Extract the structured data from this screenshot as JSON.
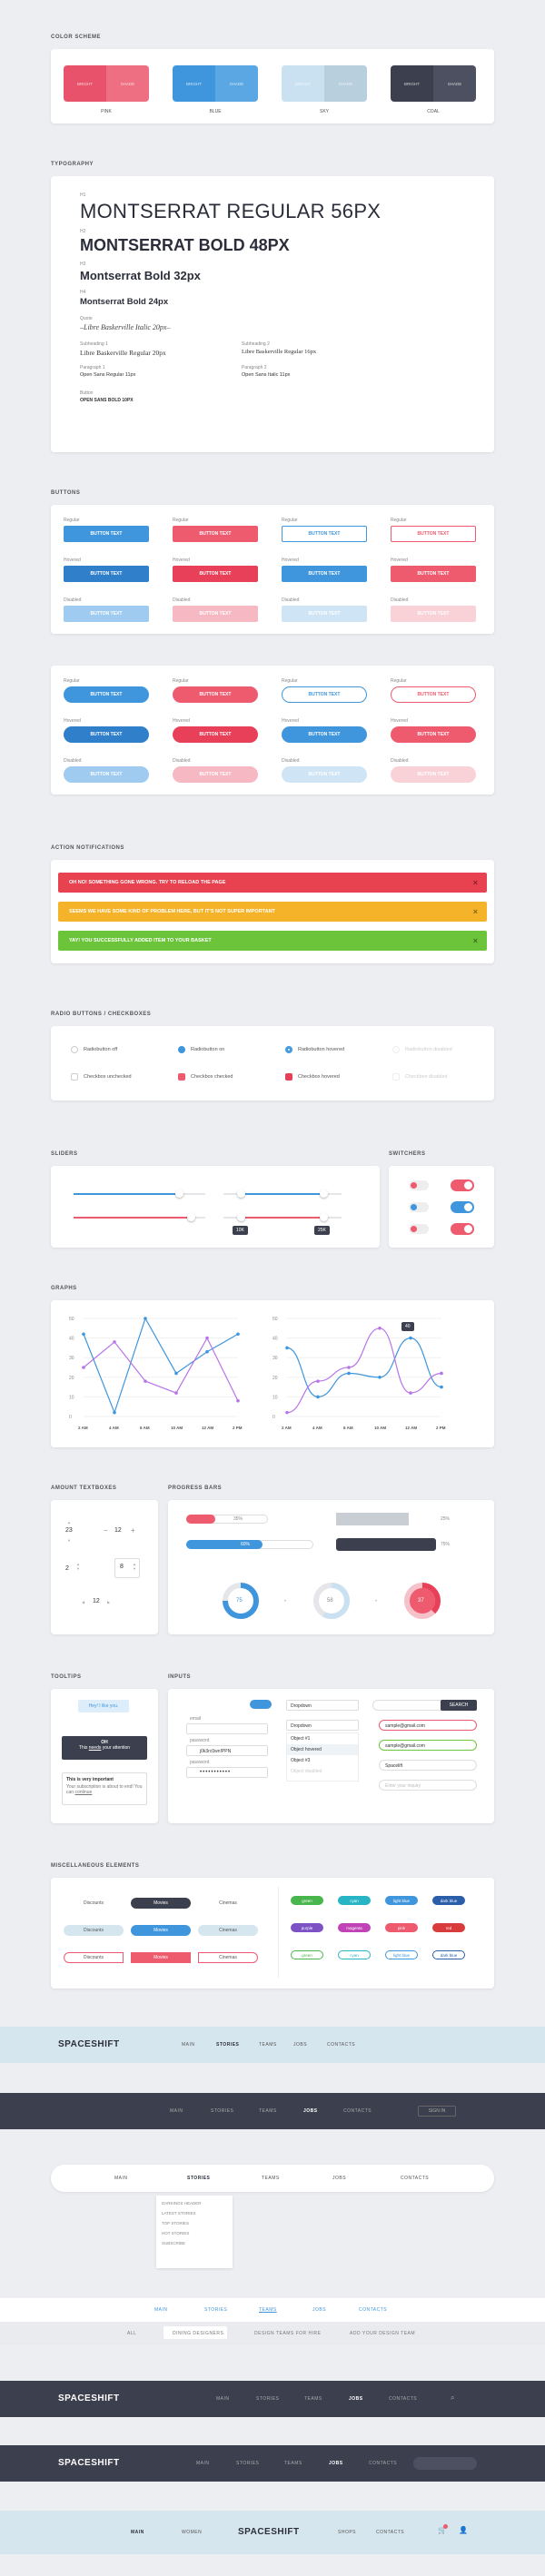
{
  "sections": {
    "color": "COLOR SCHEME",
    "typo": "TYPOGRAPHY",
    "buttons": "BUTTONS",
    "notif": "ACTION NOTIFICATIONS",
    "radio": "RADIO BUTTONS / CHECKBOXES",
    "sliders": "SLIDERS",
    "switchers": "SWITCHERS",
    "graphs": "GRAPHS",
    "amount": "AMOUNT TEXTBOXES",
    "progress": "PROGRESS BARS",
    "tooltips": "TOOLTIPS",
    "inputs": "INPUTS",
    "misc": "MISCELLANEOUS ELEMENTS"
  },
  "colors": [
    {
      "name": "PINK",
      "l": "#e8526a",
      "r": "#ee6f82",
      "a": "BRIGHT",
      "b": "SHADE"
    },
    {
      "name": "BLUE",
      "l": "#3f96dc",
      "r": "#5aa7e3",
      "a": "BRIGHT",
      "b": "SHADE"
    },
    {
      "name": "SKY",
      "l": "#c9e1f1",
      "r": "#b8cfdd",
      "a": "BRIGHT",
      "b": "SHADE"
    },
    {
      "name": "COAL",
      "l": "#3c3f4d",
      "r": "#4d5060",
      "a": "BRIGHT",
      "b": "SHADE"
    }
  ],
  "typo": {
    "h1l": "H1",
    "h1": "MONTSERRAT REGULAR 56PX",
    "h2l": "H2",
    "h2": "MONTSERRAT BOLD 48PX",
    "h3l": "H3",
    "h3": "Montserrat Bold 32px",
    "h4l": "H4",
    "h4": "Montserrat Bold 24px",
    "ql": "Quote",
    "q": "–Libre Baskerville Italic 20px–",
    "s1l": "Subheading 1",
    "s1": "Libre Baskerville Regular 20px",
    "s2l": "Subheading 2",
    "s2": "Libre Baskerville Regular 16px",
    "p1l": "Paragraph 1",
    "p1": "Open Sans Regular 11px",
    "p2l": "Paragraph 2",
    "p2": "Open Sans Italic 11px",
    "bl": "Button",
    "b": "OPEN SANS BOLD 10PX"
  },
  "btn": {
    "regular": "Regular",
    "hovered": "Hovered",
    "disabled": "Disabled",
    "text": "BUTTON TEXT"
  },
  "notifs": [
    {
      "text": "OH NO! SOMETHING GONE WRONG. TRY TO RELOAD THE PAGE",
      "color": "#e8414f"
    },
    {
      "text": "SEEMS WE HAVE SOME KIND OF PROBLEM HERE, BUT IT'S NOT SUPER IMPORTANT",
      "color": "#f5b32a"
    },
    {
      "text": "YAY! YOU SUCCESSFULLY ADDED ITEM TO YOUR BASKET",
      "color": "#6cc43a"
    }
  ],
  "close": "×",
  "radios": [
    "Radiobutton off",
    "Radiobutton on",
    "Radiobutton hovered",
    "Radiobutton disabled"
  ],
  "checks": [
    "Checkbox unchecked",
    "Checkbox checked",
    "Checkbox hovered",
    "Checkbox disabled"
  ],
  "slider": {
    "v1": "10K",
    "v2": "25K"
  },
  "graph_y": [
    "50",
    "40",
    "30",
    "20",
    "10",
    "0"
  ],
  "graph_x": [
    "2 AM",
    "4 AM",
    "6 AM",
    "10 AM",
    "12 AM",
    "2 PM"
  ],
  "graph_tip": "40",
  "chart_data": [
    {
      "type": "line",
      "x": [
        "2 AM",
        "4 AM",
        "6 AM",
        "10 AM",
        "12 AM",
        "2 PM"
      ],
      "series": [
        {
          "values": [
            42,
            2,
            50,
            22,
            33,
            42
          ]
        },
        {
          "values": [
            25,
            38,
            18,
            12,
            40,
            8
          ]
        }
      ],
      "ylim": [
        0,
        50
      ]
    },
    {
      "type": "line",
      "x": [
        "2 AM",
        "4 AM",
        "6 AM",
        "10 AM",
        "12 AM",
        "2 PM"
      ],
      "series": [
        {
          "values": [
            35,
            10,
            22,
            20,
            40,
            15
          ]
        },
        {
          "values": [
            2,
            18,
            25,
            45,
            12,
            22
          ]
        }
      ],
      "ylim": [
        0,
        50
      ]
    }
  ],
  "amount": {
    "a": "23",
    "b": "12",
    "c": "2",
    "d": "8",
    "e": "12"
  },
  "progress": {
    "p1": "35%",
    "p2": "60%",
    "p3": "25%",
    "p4": "75%",
    "r1": "75",
    "r2": "58",
    "r3": "37"
  },
  "tooltips": {
    "t1": "Hey! I like you.",
    "t2": "OH",
    "t2b": "This",
    "t2l": "needs",
    "t2c": "your attention",
    "t3": "This is very important",
    "t3b": "Your subscription is about to end! You can",
    "t3l": "continue"
  },
  "inputs": {
    "email": "email",
    "password": "password",
    "pwval": "j0k3rc0wn!PPN",
    "dd": "Dropdown",
    "opt1": "Object #1",
    "opt2": "Object hovered",
    "opt3": "Object #3",
    "opt4": "Object disabled",
    "search": "SEARCH",
    "e1": "sample@gmail.com",
    "e2": "sample@gmail.com",
    "e3": "Spacelift",
    "e4": "Enter your inquiry"
  },
  "misc": {
    "d": "Discounts",
    "m": "Movies",
    "c": "Cinemas"
  },
  "tags": [
    {
      "t": "green",
      "c": "#49b54d"
    },
    {
      "t": "cyan",
      "c": "#27b4c4"
    },
    {
      "t": "light blue",
      "c": "#3f96dc"
    },
    {
      "t": "dark blue",
      "c": "#2a5ea8"
    },
    {
      "t": "purple",
      "c": "#7c52c5"
    },
    {
      "t": "magenta",
      "c": "#c044b6"
    },
    {
      "t": "pink",
      "c": "#ee5a6e"
    },
    {
      "t": "red",
      "c": "#d83c3c"
    },
    {
      "t": "green",
      "c": "#49b54d"
    },
    {
      "t": "cyan",
      "c": "#27b4c4"
    },
    {
      "t": "light blue",
      "c": "#3f96dc"
    },
    {
      "t": "dark blue",
      "c": "#2a5ea8"
    }
  ],
  "nav": {
    "logo": "SPACESHIFT",
    "main": "MAIN",
    "stories": "STORIES",
    "teams": "TEAMS",
    "jobs": "JOBS",
    "contacts": "CONTACTS",
    "signin": "SIGN IN",
    "women": "WOMEN",
    "shops": "SHOPS",
    "all": "ALL",
    "dd1": "DARKINGS HEADER",
    "dd2": "LATEST STORIES",
    "dd3": "TOP STORIES",
    "dd4": "HOT STORIES",
    "dd5": "SUBSCRIBE",
    "sub1": "DINING DESIGNERS",
    "sub2": "DESIGN TEAMS FOR HIRE",
    "sub3": "ADD YOUR DESIGN TEAM"
  }
}
